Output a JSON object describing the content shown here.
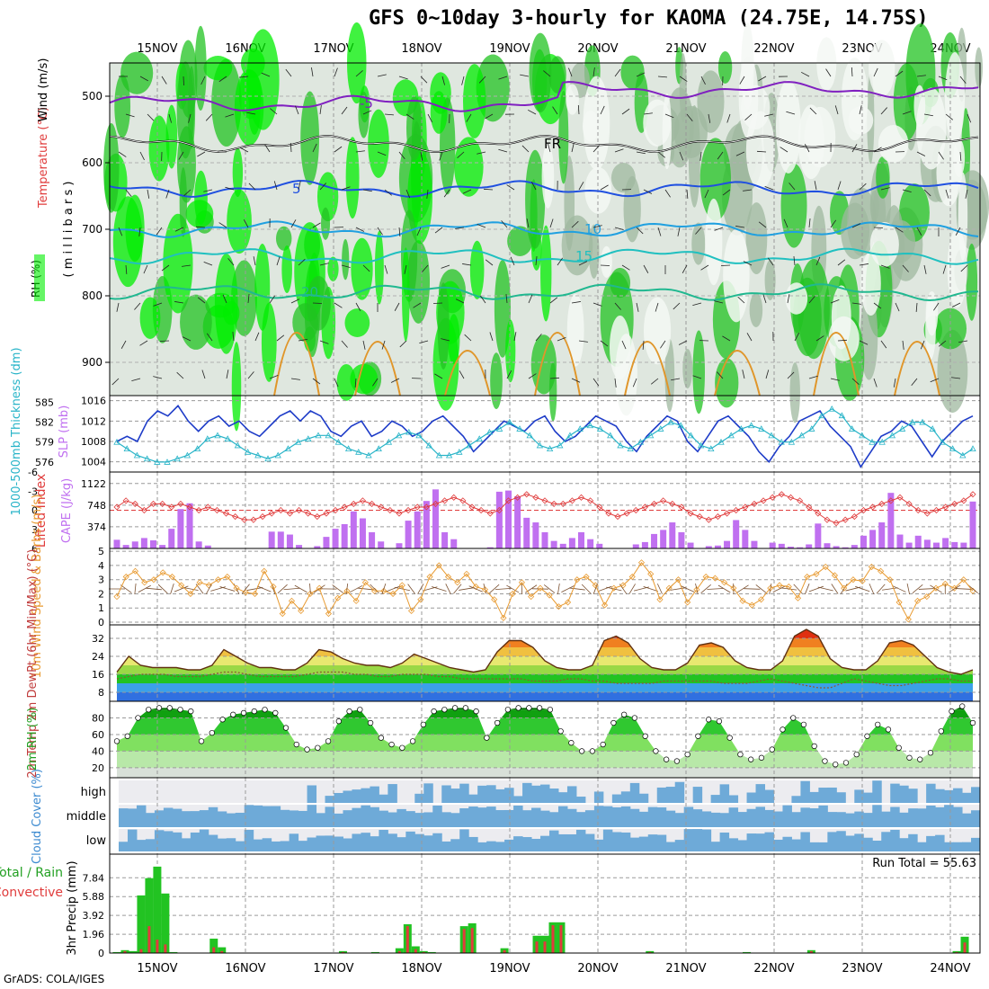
{
  "title": "GFS 0~10day 3-hourly for KAOMA (24.75E, 14.75S)",
  "credit": "GrADS: COLA/IGES",
  "dates": [
    "15NOV",
    "16NOV",
    "17NOV",
    "18NOV",
    "19NOV",
    "20NOV",
    "21NOV",
    "22NOV",
    "23NOV",
    "24NOV"
  ],
  "colors": {
    "rh_green": "#22c322",
    "rh_bright": "#00ee00",
    "rh_grey": "#c8d2c8",
    "slp": "#1e3cc8",
    "thick": "#28b4c8",
    "li": "#e03c3c",
    "cape": "#c070f0",
    "wind": "#e89a30",
    "precip_total": "#22c322",
    "precip_conv": "#e03c3c",
    "cloud": "#6eaad8"
  },
  "chart_data": [
    {
      "type": "heatmap",
      "name": "vertical-profile",
      "ylabel": "(millibars)",
      "side_labels": [
        "RH (%)",
        "Temperature (°C)",
        "Wind (m/s)"
      ],
      "yticks": [
        500,
        600,
        700,
        800,
        900
      ],
      "ylim": [
        450,
        950
      ],
      "contour_labels": [
        "-5",
        "FR",
        "5",
        "10",
        "15",
        "20"
      ]
    },
    {
      "type": "line",
      "name": "slp-thickness",
      "ylabel_left": "1000-500mb Thickness (dm)",
      "ylabel_right": "SLP (mb)",
      "left_ticks": [
        576,
        579,
        582,
        585
      ],
      "right_ticks": [
        1004,
        1008,
        1012,
        1016
      ],
      "slp": [
        1008,
        1009,
        1008,
        1012,
        1014,
        1013,
        1015,
        1012,
        1010,
        1012,
        1013,
        1011,
        1012,
        1010,
        1009,
        1011,
        1013,
        1014,
        1012,
        1014,
        1013,
        1010,
        1009,
        1011,
        1012,
        1009,
        1010,
        1012,
        1011,
        1009,
        1010,
        1012,
        1013,
        1011,
        1009,
        1006,
        1008,
        1010,
        1012,
        1011,
        1010,
        1012,
        1013,
        1010,
        1008,
        1009,
        1011,
        1013,
        1012,
        1011,
        1008,
        1006,
        1009,
        1011,
        1013,
        1012,
        1008,
        1006,
        1009,
        1012,
        1013,
        1011,
        1009,
        1006,
        1004,
        1007,
        1009,
        1012,
        1013,
        1014,
        1011,
        1009,
        1007,
        1003,
        1006,
        1009,
        1010,
        1012,
        1011,
        1008,
        1005,
        1008,
        1010,
        1012,
        1013
      ],
      "thickness": [
        579,
        578,
        577,
        576.5,
        576,
        576,
        576.5,
        577,
        578,
        579.5,
        580,
        579.5,
        578.5,
        577.5,
        577,
        576.5,
        577,
        578,
        579,
        579.5,
        580,
        580,
        579,
        578,
        577.5,
        577,
        578,
        579,
        580,
        580.5,
        580,
        578.5,
        577,
        577,
        577.5,
        578.5,
        579.5,
        580.5,
        581,
        582,
        581,
        580,
        578.5,
        578,
        578.5,
        580,
        581,
        581.5,
        581,
        580,
        578.5,
        578,
        579,
        580,
        581,
        582,
        581.5,
        580,
        578.5,
        578,
        579,
        580,
        581,
        581.5,
        581,
        580,
        579,
        579,
        580,
        581,
        583,
        584,
        583,
        581,
        580,
        579,
        579,
        580,
        581,
        582,
        582,
        581,
        579,
        578,
        577,
        578
      ]
    },
    {
      "type": "bar",
      "name": "lifted-index-cape",
      "ylabel_left": "Lifted Index",
      "ylabel_right": "CAPE (J/kg)",
      "left_ticks": [
        -6,
        -3,
        0,
        3,
        6
      ],
      "right_ticks": [
        374,
        748,
        1122
      ],
      "cape": [
        150,
        60,
        120,
        180,
        140,
        60,
        340,
        680,
        780,
        120,
        50,
        0,
        0,
        0,
        0,
        0,
        0,
        290,
        290,
        240,
        60,
        0,
        40,
        200,
        340,
        420,
        640,
        520,
        280,
        120,
        0,
        90,
        480,
        640,
        820,
        1020,
        280,
        160,
        0,
        0,
        0,
        20,
        980,
        1000,
        900,
        530,
        450,
        280,
        130,
        80,
        180,
        280,
        160,
        80,
        0,
        0,
        0,
        70,
        110,
        250,
        320,
        450,
        280,
        100,
        0,
        40,
        50,
        130,
        490,
        320,
        130,
        0,
        100,
        80,
        30,
        20,
        70,
        430,
        90,
        40,
        20,
        60,
        220,
        320,
        450,
        960,
        240,
        100,
        220,
        150,
        100,
        180,
        110,
        100,
        810
      ],
      "li": [
        -0.5,
        -1.5,
        -1,
        0,
        -1,
        -1,
        -0.5,
        -1,
        -0.5,
        0,
        -0.5,
        0,
        0.5,
        1,
        1.5,
        1.5,
        1,
        0.5,
        0,
        0.5,
        0,
        0.5,
        1,
        0.5,
        0,
        -0.5,
        -1,
        -1.5,
        -1,
        -0.5,
        0,
        0.5,
        0,
        -0.5,
        -0.5,
        -1,
        -1.5,
        -2,
        -1.5,
        -0.5,
        0,
        0.5,
        0,
        -1.5,
        -2,
        -2.5,
        -2,
        -1.5,
        -1,
        -1,
        -1.5,
        -2,
        -1.5,
        -0.5,
        0.5,
        1,
        0.5,
        0,
        -0.5,
        -1,
        -1.5,
        -1,
        -0.5,
        0.5,
        1,
        1.5,
        1,
        0.5,
        0,
        -0.5,
        -1,
        -1.5,
        -2,
        -2.5,
        -2,
        -1.5,
        -0.5,
        0.5,
        1.5,
        2,
        1.5,
        1,
        0,
        -0.5,
        -1,
        -1.5,
        -2,
        -1,
        0,
        0.5,
        0,
        -0.5,
        -1,
        -1.5,
        -2.5
      ]
    },
    {
      "type": "line",
      "name": "wind-10m",
      "ylabel": "10m Wind Speed & Barbs (m/s)",
      "yticks": [
        0,
        1,
        2,
        3,
        4,
        5
      ],
      "values": [
        1.8,
        3.2,
        3.6,
        2.8,
        3.0,
        3.5,
        3.2,
        2.6,
        2.0,
        2.8,
        2.6,
        3.0,
        3.2,
        2.4,
        2.1,
        2.0,
        3.6,
        2.5,
        0.6,
        1.5,
        0.8,
        2.0,
        2.4,
        0.6,
        1.7,
        2.2,
        1.5,
        2.8,
        2.2,
        2.2,
        2.0,
        2.6,
        0.8,
        1.6,
        3.2,
        4.0,
        3.2,
        2.8,
        3.4,
        2.5,
        2.3,
        1.6,
        0.3,
        2.0,
        2.8,
        1.8,
        2.4,
        1.9,
        1.1,
        1.4,
        3.0,
        3.2,
        2.6,
        1.2,
        2.4,
        2.6,
        3.2,
        4.2,
        3.4,
        1.6,
        2.4,
        3.0,
        1.4,
        2.3,
        3.2,
        3.1,
        2.8,
        2.4,
        1.5,
        1.2,
        1.6,
        2.4,
        2.6,
        2.5,
        1.7,
        3.2,
        3.4,
        3.9,
        3.3,
        2.4,
        3.0,
        2.9,
        3.9,
        3.6,
        3.0,
        1.4,
        0.2,
        1.5,
        1.8,
        2.4,
        2.7,
        2.4,
        3.0,
        2.2
      ]
    },
    {
      "type": "area",
      "name": "temperature-2m",
      "ylabel": "2m Temp 2m DewPt (6hr Min/Max) (°C)",
      "yticks": [
        8,
        16,
        24,
        32
      ],
      "temp": [
        17,
        24,
        20,
        19,
        19,
        19,
        18,
        18,
        20,
        27,
        24,
        21,
        19,
        19,
        18,
        18,
        21,
        27,
        26,
        23,
        21,
        20,
        20,
        19,
        21,
        25,
        23,
        21,
        19,
        18,
        17,
        18,
        26,
        31,
        31,
        28,
        22,
        19,
        18,
        18,
        20,
        31,
        33,
        30,
        23,
        19,
        18,
        18,
        21,
        29,
        30,
        28,
        22,
        19,
        18,
        18,
        22,
        33,
        36,
        33,
        23,
        19,
        18,
        18,
        22,
        30,
        31,
        29,
        24,
        19,
        17,
        16,
        18
      ],
      "dewpt": [
        14,
        15,
        16,
        16,
        16,
        15,
        15,
        15,
        16,
        17,
        17,
        16,
        15,
        15,
        15,
        15,
        16,
        17,
        17,
        17,
        16,
        16,
        15,
        15,
        16,
        16,
        16,
        15,
        15,
        14,
        14,
        14,
        14,
        14,
        14,
        13,
        13,
        13,
        14,
        14,
        13,
        13,
        12,
        12,
        12,
        12,
        13,
        13,
        13,
        13,
        13,
        12,
        12,
        12,
        13,
        14,
        13,
        12,
        11,
        10,
        10,
        12,
        14,
        13,
        12,
        11,
        11,
        12,
        13,
        14,
        14,
        13,
        13
      ]
    },
    {
      "type": "area",
      "name": "rh-2m",
      "ylabel": "2m RH (%)",
      "yticks": [
        20,
        40,
        60,
        80
      ],
      "values": [
        52,
        58,
        80,
        90,
        92,
        92,
        90,
        88,
        52,
        62,
        78,
        84,
        86,
        88,
        90,
        86,
        68,
        48,
        42,
        44,
        52,
        76,
        88,
        90,
        74,
        56,
        48,
        44,
        52,
        72,
        88,
        90,
        92,
        92,
        88,
        56,
        74,
        90,
        92,
        92,
        92,
        90,
        64,
        50,
        40,
        40,
        48,
        74,
        84,
        80,
        58,
        40,
        30,
        28,
        36,
        58,
        78,
        76,
        56,
        36,
        30,
        32,
        42,
        66,
        80,
        72,
        46,
        28,
        24,
        26,
        36,
        58,
        72,
        66,
        44,
        32,
        30,
        38,
        64,
        88,
        94,
        74
      ]
    },
    {
      "type": "heatmap",
      "name": "cloud-cover",
      "ylabel": "Cloud Cover (%)",
      "rows": [
        "high",
        "middle",
        "low"
      ]
    },
    {
      "type": "bar",
      "name": "precip-3hr",
      "ylabel": "3hr Precip (mm)",
      "side_labels": [
        "Total / Rain",
        "Convective"
      ],
      "yticks": [
        0,
        1.96,
        3.92,
        5.88,
        7.84
      ],
      "run_total": "Run Total = 55.63",
      "total": [
        0.1,
        0.3,
        0.2,
        6.0,
        7.8,
        9.0,
        6.2,
        0.1,
        0,
        0,
        0,
        0,
        1.5,
        0.6,
        0,
        0,
        0,
        0,
        0,
        0,
        0,
        0,
        0,
        0,
        0,
        0,
        0,
        0,
        0.2,
        0,
        0,
        0,
        0.1,
        0,
        0,
        0.5,
        3.0,
        0.7,
        0.2,
        0.1,
        0,
        0,
        0,
        2.8,
        3.1,
        0,
        0,
        0,
        0.5,
        0,
        0,
        0,
        1.8,
        1.8,
        3.2,
        3.2,
        0,
        0,
        0,
        0,
        0,
        0,
        0,
        0,
        0,
        0,
        0.2,
        0,
        0,
        0,
        0,
        0,
        0,
        0,
        0,
        0,
        0,
        0,
        0.1,
        0,
        0,
        0,
        0,
        0,
        0,
        0,
        0.3,
        0,
        0,
        0,
        0,
        0,
        0,
        0,
        0,
        0,
        0,
        0,
        0,
        0,
        0,
        0,
        0,
        0,
        0.2,
        1.7,
        0
      ],
      "conv": [
        0,
        0.2,
        0,
        0.4,
        2.8,
        1.4,
        0.9,
        0,
        0,
        0,
        0,
        0,
        0.6,
        0.2,
        0,
        0,
        0,
        0,
        0,
        0,
        0,
        0,
        0,
        0,
        0,
        0,
        0,
        0,
        0.1,
        0,
        0,
        0,
        0,
        0,
        0,
        0.2,
        2.8,
        0.4,
        0.1,
        0,
        0,
        0,
        0,
        2.5,
        2.6,
        0,
        0,
        0,
        0.3,
        0,
        0,
        0,
        1.2,
        1.2,
        2.9,
        2.9,
        0,
        0,
        0,
        0,
        0,
        0,
        0,
        0,
        0,
        0,
        0.1,
        0,
        0,
        0,
        0,
        0,
        0,
        0,
        0,
        0,
        0,
        0,
        0,
        0,
        0,
        0,
        0,
        0,
        0,
        0,
        0.2,
        0,
        0,
        0,
        0,
        0,
        0,
        0,
        0,
        0,
        0,
        0,
        0,
        0,
        0,
        0,
        0,
        0,
        0.1,
        1.1,
        0
      ]
    }
  ]
}
